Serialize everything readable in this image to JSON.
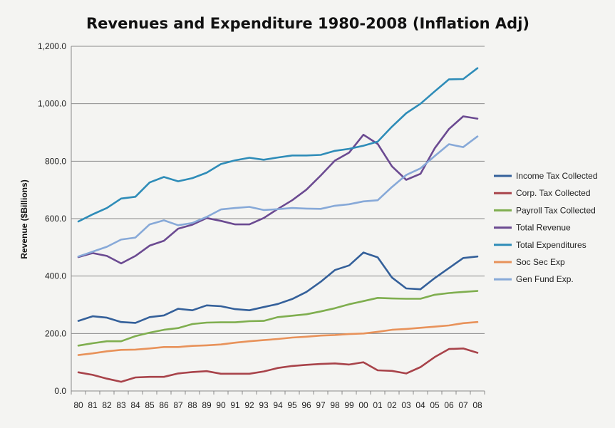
{
  "chart_data": {
    "type": "line",
    "title": "Revenues and Expenditure 1980-2008 (Inflation Adj)",
    "xlabel": "",
    "ylabel": "Revenue ($Billions)",
    "ylim": [
      0,
      1200
    ],
    "yticks": [
      0,
      200,
      400,
      600,
      800,
      1000,
      1200
    ],
    "ytick_labels": [
      "0.0",
      "200.0",
      "400.0",
      "600.0",
      "800.0",
      "1,000.0",
      "1,200.0"
    ],
    "grid": true,
    "legend_position": "right",
    "categories": [
      "80",
      "81",
      "82",
      "83",
      "84",
      "85",
      "86",
      "87",
      "88",
      "89",
      "90",
      "91",
      "92",
      "93",
      "94",
      "95",
      "96",
      "97",
      "98",
      "99",
      "00",
      "01",
      "02",
      "03",
      "04",
      "05",
      "06",
      "07",
      "08"
    ],
    "series": [
      {
        "name": "Income Tax Collected",
        "color": "#34609a",
        "values": [
          244,
          260,
          255,
          240,
          237,
          257,
          263,
          286,
          281,
          298,
          295,
          285,
          281,
          292,
          303,
          320,
          345,
          380,
          421,
          437,
          482,
          465,
          395,
          357,
          354,
          393,
          428,
          463,
          468
        ]
      },
      {
        "name": "Corp. Tax Collected",
        "color": "#a8434a",
        "values": [
          65,
          56,
          43,
          32,
          47,
          49,
          49,
          61,
          66,
          69,
          60,
          60,
          60,
          68,
          80,
          87,
          91,
          94,
          96,
          92,
          100,
          72,
          70,
          61,
          83,
          118,
          146,
          148,
          133
        ]
      },
      {
        "name": "Payroll Tax Collected",
        "color": "#7fae4f",
        "values": [
          158,
          166,
          173,
          173,
          191,
          203,
          213,
          219,
          233,
          238,
          239,
          239,
          243,
          244,
          257,
          262,
          267,
          277,
          288,
          302,
          313,
          324,
          322,
          321,
          321,
          335,
          341,
          345,
          348
        ]
      },
      {
        "name": "Total Revenue",
        "color": "#6b4a91",
        "values": [
          466,
          480,
          470,
          444,
          470,
          506,
          523,
          565,
          579,
          602,
          592,
          580,
          580,
          602,
          634,
          664,
          701,
          750,
          802,
          830,
          892,
          860,
          782,
          735,
          756,
          845,
          912,
          956,
          948
        ]
      },
      {
        "name": "Total Expenditures",
        "color": "#2e8cb8",
        "values": [
          590,
          615,
          637,
          670,
          676,
          726,
          745,
          730,
          741,
          760,
          790,
          803,
          812,
          805,
          813,
          820,
          820,
          822,
          836,
          843,
          854,
          868,
          920,
          967,
          1000,
          1043,
          1085,
          1086,
          1124
        ]
      },
      {
        "name": "Soc Sec Exp",
        "color": "#e8925a",
        "values": [
          125,
          131,
          138,
          143,
          144,
          148,
          153,
          153,
          157,
          159,
          162,
          168,
          173,
          177,
          181,
          186,
          189,
          193,
          195,
          198,
          200,
          206,
          213,
          216,
          220,
          224,
          228,
          236,
          240
        ]
      },
      {
        "name": "Gen Fund Exp.",
        "color": "#87a9d8",
        "values": [
          468,
          485,
          502,
          527,
          534,
          580,
          594,
          577,
          585,
          606,
          632,
          637,
          641,
          630,
          633,
          637,
          635,
          634,
          645,
          650,
          660,
          664,
          710,
          752,
          775,
          818,
          859,
          849,
          886
        ]
      }
    ]
  }
}
